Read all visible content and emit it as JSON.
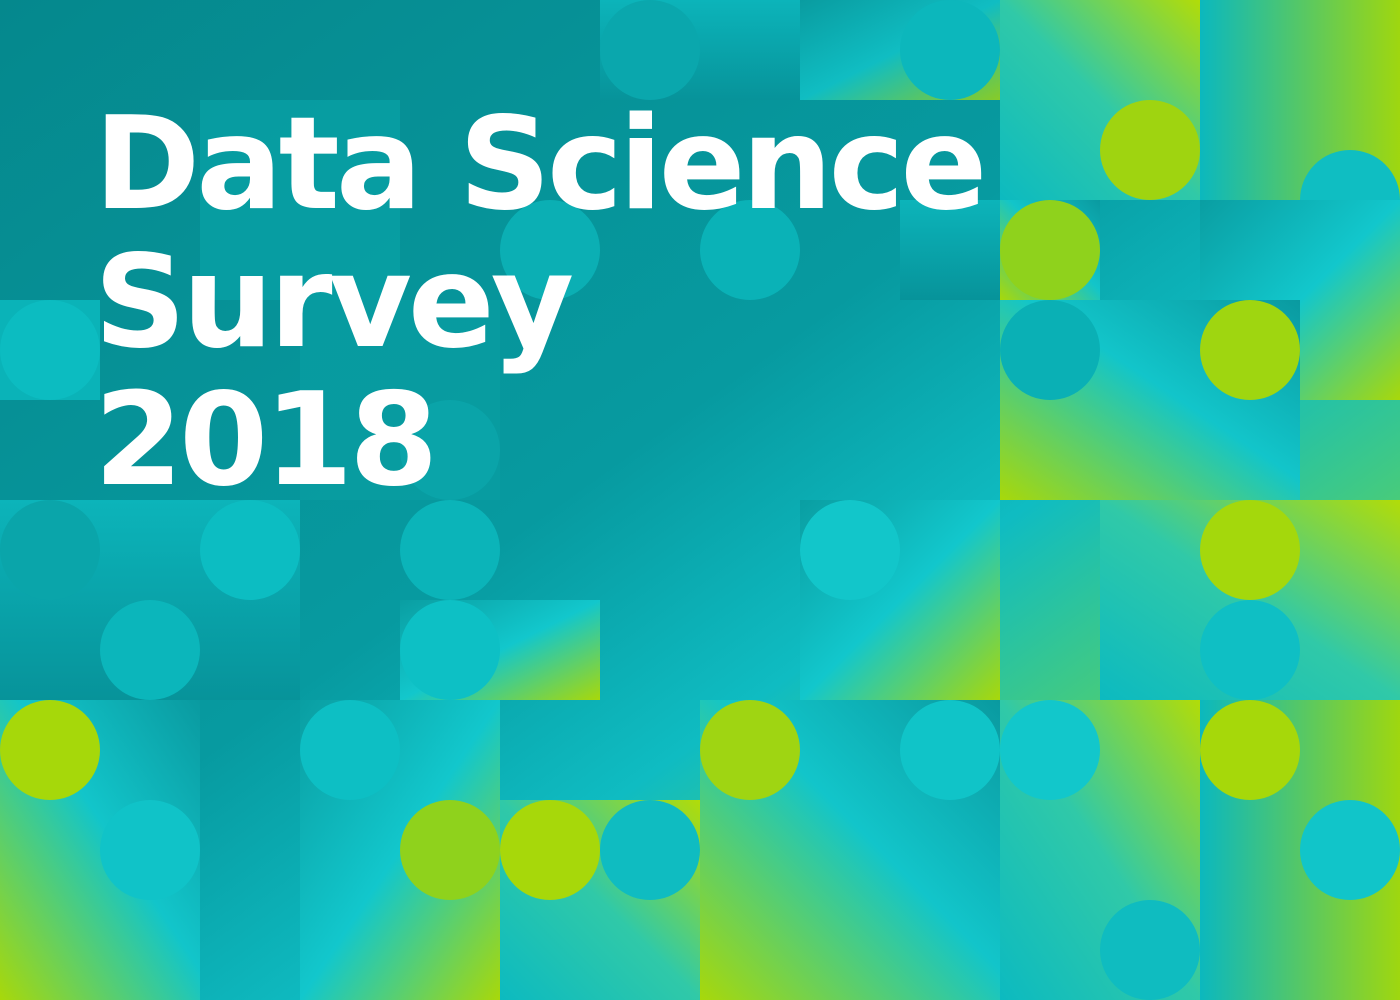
{
  "cover": {
    "title_lines": [
      "Data Science",
      "Survey",
      "2018"
    ]
  },
  "colors": {
    "deep_teal": "#05888d",
    "teal": "#0a9ea2",
    "cyan": "#11c6cb",
    "lime": "#a8d80a",
    "text": "#ffffff"
  }
}
